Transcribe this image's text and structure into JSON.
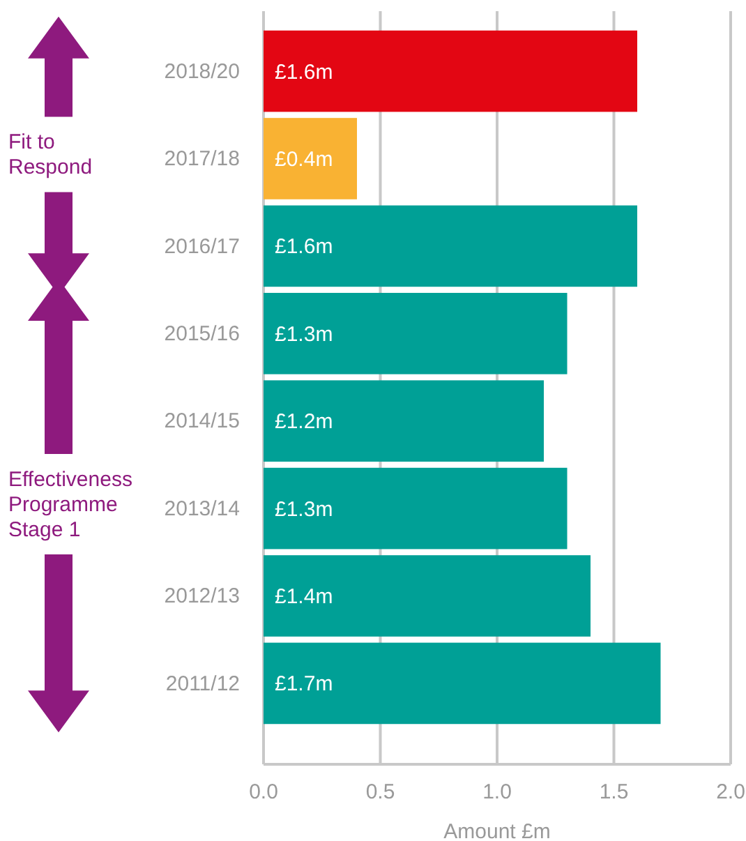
{
  "chart_data": {
    "type": "bar",
    "orientation": "horizontal",
    "xlabel": "Amount £m",
    "categories": [
      "2018/20",
      "2017/18",
      "2016/17",
      "2015/16",
      "2014/15",
      "2013/14",
      "2012/13",
      "2011/12"
    ],
    "values": [
      1.6,
      0.4,
      1.6,
      1.3,
      1.2,
      1.3,
      1.4,
      1.7
    ],
    "colors": [
      "#e30613",
      "#f9b233",
      "#00a096",
      "#00a096",
      "#00a096",
      "#00a096",
      "#00a096",
      "#00a096"
    ],
    "value_labels": [
      "£1.6m",
      "£0.4m",
      "£1.6m",
      "£1.3m",
      "£1.2m",
      "£1.3m",
      "£1.4m",
      "£1.7m"
    ],
    "xlim": [
      0,
      2
    ],
    "xticks": [
      {
        "value": 0,
        "label": "0.0"
      },
      0.5,
      {
        "value": 1,
        "label": "1.0"
      },
      1.5,
      {
        "value": 2,
        "label": "2.0"
      }
    ],
    "grid": "x",
    "annotations": [
      "Fit to Respond",
      "Effectiveness Programme Stage 1"
    ]
  }
}
